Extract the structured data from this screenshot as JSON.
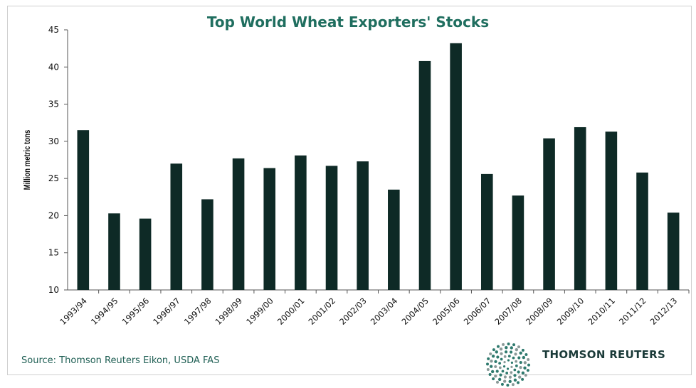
{
  "chart_data": {
    "type": "bar",
    "title": "Top World Wheat Exporters' Stocks",
    "ylabel": "Million metric tons",
    "xlabel": "",
    "ylim": [
      10,
      45
    ],
    "yticks": [
      10,
      15,
      20,
      25,
      30,
      35,
      40,
      45
    ],
    "categories": [
      "1993/94",
      "1994/95",
      "1995/96",
      "1996/97",
      "1997/98",
      "1998/99",
      "1999/00",
      "2000/01",
      "2001/02",
      "2002/03",
      "2003/04",
      "2004/05",
      "2005/06",
      "2006/07",
      "2007/08",
      "2008/09",
      "2009/10",
      "2010/11",
      "2011/12",
      "2012/13"
    ],
    "values": [
      31.5,
      20.3,
      19.6,
      27.0,
      22.2,
      27.7,
      26.4,
      28.1,
      26.7,
      27.3,
      23.5,
      40.8,
      43.2,
      25.6,
      22.7,
      30.4,
      31.9,
      31.3,
      25.8,
      20.4
    ],
    "bar_color": "#0e2a26",
    "grid": false,
    "legend": "none"
  },
  "footer": {
    "source": "Source: Thomson Reuters Eikon, USDA FAS",
    "brand": "THOMSON REUTERS",
    "logo_icon": "thomson-reuters-dot-sphere-icon"
  },
  "colors": {
    "title": "#1f6e5f",
    "source": "#1f5f54"
  }
}
